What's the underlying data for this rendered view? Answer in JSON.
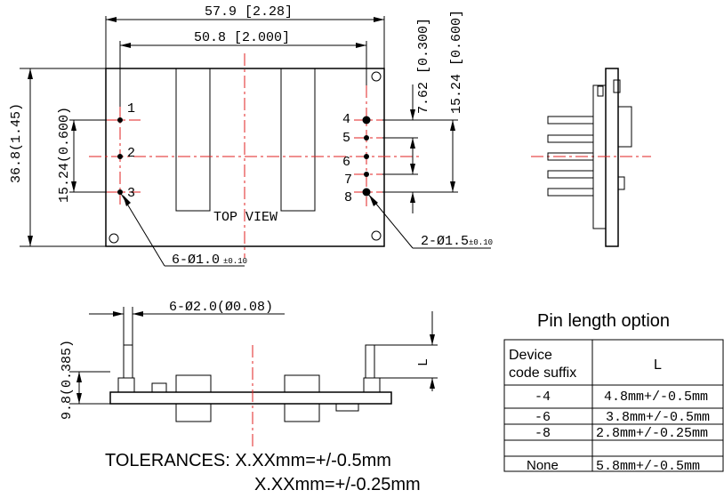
{
  "top_view": {
    "dim_width_total": "57.9 [2.28]",
    "dim_pin_span": "50.8 [2.000]",
    "dim_height_total": "36.8(1.45)",
    "dim_left_pin_span": "15.24(0.600)",
    "dim_right_pitch": "7.62 [0.300]",
    "dim_right_span": "15.24 [0.600]",
    "view_label": "TOP VIEW",
    "pin_labels": [
      "1",
      "2",
      "3",
      "4",
      "5",
      "6",
      "7",
      "8"
    ],
    "callout_small_holes": "6-Ø1.0",
    "callout_small_tol": "±0.10",
    "callout_large_holes": "2-Ø1.5",
    "callout_large_tol": "±0.10"
  },
  "front_view": {
    "callout_pin_dia": "6-Ø2.0(Ø0.08)",
    "dim_height": "9.8(0.385)",
    "dim_pin_length": "L"
  },
  "tolerances": {
    "line1": "TOLERANCES: X.XXmm=+/-0.5mm",
    "line2": "X.XXmm=+/-0.25mm"
  },
  "pin_length_table": {
    "title": "Pin length option",
    "headers": [
      "Device code suffix",
      "L"
    ],
    "rows": [
      [
        "-4",
        "4.8mm+/-0.5mm"
      ],
      [
        "-6",
        "3.8mm+/-0.5mm"
      ],
      [
        "-8",
        "2.8mm+/-0.25mm"
      ],
      [
        "None",
        "5.8mm+/-0.5mm"
      ]
    ]
  },
  "colors": {
    "centerline": "#e02020",
    "pin_fill": "#000000"
  }
}
